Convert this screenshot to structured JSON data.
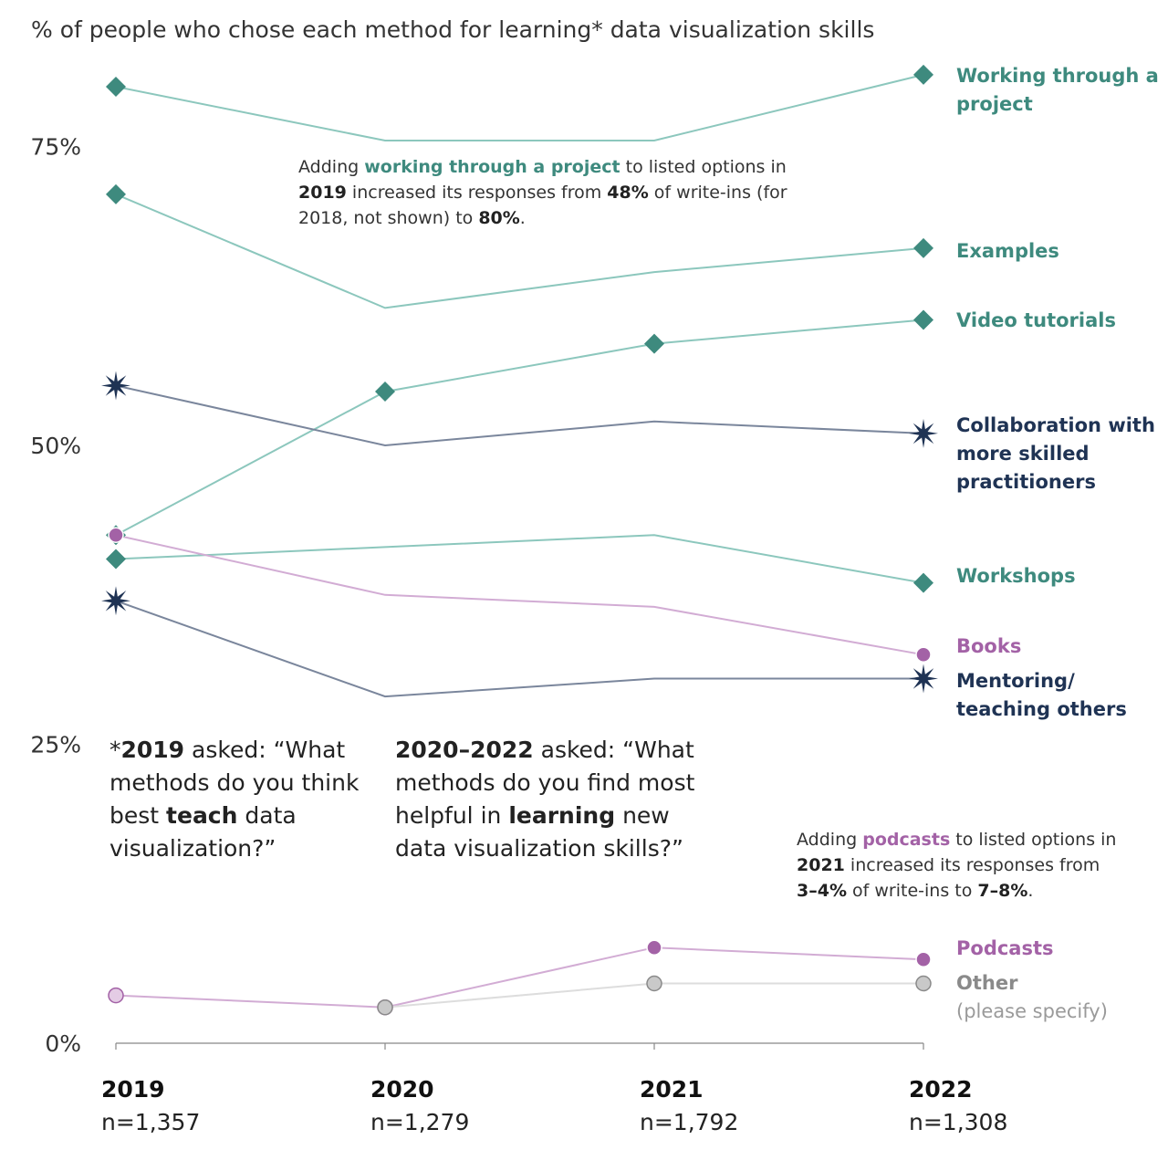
{
  "title": "% of people who chose each method for learning* data visualization skills",
  "colors": {
    "teal": "#3e8a7e",
    "teal_line": "#8cc7bd",
    "navy": "#1f3354",
    "navy_line": "#7a869c",
    "purple": "#a362a6",
    "purple_line": "#d2acd4",
    "purple_light_fill": "#e4cce5",
    "gray": "#8a8a8a",
    "gray_fill": "#c9c9c9",
    "gray_line": "#dddddd",
    "axis": "#888888"
  },
  "annotations": {
    "project": {
      "p1": "Adding ",
      "b1": "working through a project",
      "p2": " to listed options in ",
      "b2": "2019",
      "p3": " increased its responses from ",
      "b3": "48%",
      "p4": " of write-ins (for 2018, not shown) to ",
      "b4": "80%",
      "p5": "."
    },
    "podcasts": {
      "p1": "Adding ",
      "b1": "podcasts",
      "p2": " to listed options in ",
      "b2": "2021",
      "p3": " increased its responses from ",
      "b3": "3–4%",
      "p4": " of write-ins to ",
      "b4": "7–8%",
      "p5": "."
    },
    "note2019": {
      "star": "*",
      "b1": "2019",
      "p1": " asked: “What methods do you think best ",
      "b2": "teach",
      "p2": " data visualization?”"
    },
    "note2020": {
      "b1": "2020–2022",
      "p1": " asked: “What methods do you find most helpful in ",
      "b2": "learning",
      "p2": " new data visualization skills?”"
    }
  },
  "chart_data": {
    "type": "line",
    "title": "% of people who chose each method for learning* data visualization skills",
    "x": [
      "2019",
      "2020",
      "2021",
      "2022"
    ],
    "x_sublabels": [
      "n=1,357",
      "n=1,279",
      "n=1,792",
      "n=1,308"
    ],
    "y_ticks": [
      {
        "value": 0,
        "label": "0%"
      },
      {
        "value": 25,
        "label": "25%"
      },
      {
        "value": 50,
        "label": "50%"
      },
      {
        "value": 75,
        "label": "75%"
      }
    ],
    "ylim": [
      0,
      83
    ],
    "grid": false,
    "series": [
      {
        "name": "Working through a project",
        "label_lines": [
          "Working through a",
          "project"
        ],
        "values": [
          80,
          75.5,
          75.5,
          81
        ],
        "marker": "diamond",
        "color": "teal",
        "marked": [
          true,
          false,
          false,
          true
        ]
      },
      {
        "name": "Examples",
        "label_lines": [
          "Examples"
        ],
        "values": [
          71,
          61.5,
          64.5,
          66.5
        ],
        "marker": "diamond",
        "color": "teal",
        "marked": [
          true,
          false,
          false,
          true
        ]
      },
      {
        "name": "Video tutorials",
        "label_lines": [
          "Video tutorials"
        ],
        "values": [
          42.5,
          54.5,
          58.5,
          60.5
        ],
        "marker": "diamond",
        "color": "teal",
        "marked": [
          true,
          true,
          true,
          true
        ]
      },
      {
        "name": "Collaboration with more skilled practitioners",
        "label_lines": [
          "Collaboration with",
          "more skilled",
          "practitioners"
        ],
        "values": [
          55,
          50,
          52,
          51
        ],
        "marker": "star",
        "color": "navy",
        "marked": [
          true,
          false,
          false,
          true
        ]
      },
      {
        "name": "Workshops",
        "label_lines": [
          "Workshops"
        ],
        "values": [
          40.5,
          41.5,
          42.5,
          38.5
        ],
        "marker": "diamond",
        "color": "teal",
        "marked": [
          true,
          false,
          false,
          true
        ]
      },
      {
        "name": "Books",
        "label_lines": [
          "Books"
        ],
        "values": [
          42.5,
          37.5,
          36.5,
          32.5
        ],
        "marker": "circle",
        "color": "purple",
        "marked": [
          true,
          false,
          false,
          true
        ]
      },
      {
        "name": "Mentoring/ teaching others",
        "label_lines": [
          "Mentoring/",
          "teaching others"
        ],
        "values": [
          37,
          29,
          30.5,
          30.5
        ],
        "marker": "star",
        "color": "navy",
        "marked": [
          true,
          false,
          false,
          true
        ]
      },
      {
        "name": "Podcasts",
        "label_lines": [
          "Podcasts"
        ],
        "values": [
          4,
          3,
          8,
          7
        ],
        "marker": "circle",
        "color": "purple",
        "marked": [
          true,
          true,
          true,
          true
        ]
      },
      {
        "name": "Other (please specify)",
        "label_lines": [
          "Other",
          "(please specify)"
        ],
        "values": [
          null,
          3,
          5,
          5
        ],
        "marker": "circle",
        "color": "gray",
        "marked": [
          false,
          true,
          true,
          true
        ]
      }
    ]
  }
}
